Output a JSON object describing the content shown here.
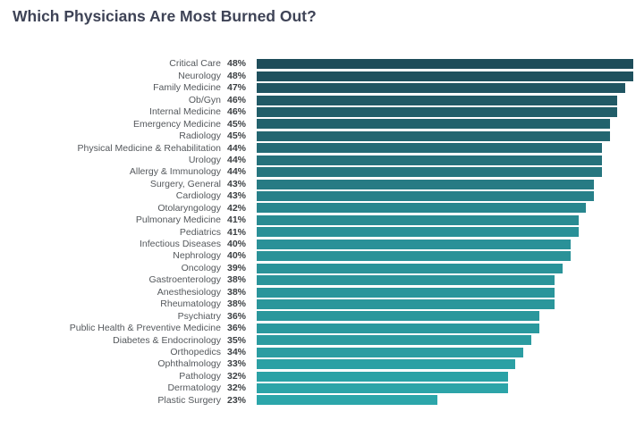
{
  "title": "Which Physicians Are Most Burned Out?",
  "colors": {
    "title": "#3e4356",
    "label": "#54585c",
    "value": "#3c4043",
    "background": "#ffffff",
    "bar_gradient_anchors": [
      {
        "index": 0,
        "color": "#1e4d5a"
      },
      {
        "index": 6,
        "color": "#236671"
      },
      {
        "index": 14,
        "color": "#2a9097"
      },
      {
        "index": 21,
        "color": "#2a979c"
      },
      {
        "index": 28,
        "color": "#2ca6aa"
      }
    ]
  },
  "chart_data": {
    "type": "bar",
    "orientation": "horizontal",
    "title": "Which Physicians Are Most Burned Out?",
    "xlabel": "",
    "ylabel": "",
    "xlim": [
      0,
      48
    ],
    "grid": false,
    "legend": false,
    "value_suffix": "%",
    "categories": [
      "Critical Care",
      "Neurology",
      "Family Medicine",
      "Ob/Gyn",
      "Internal Medicine",
      "Emergency Medicine",
      "Radiology",
      "Physical Medicine & Rehabilitation",
      "Urology",
      "Allergy & Immunology",
      "Surgery, General",
      "Cardiology",
      "Otolaryngology",
      "Pulmonary Medicine",
      "Pediatrics",
      "Infectious Diseases",
      "Nephrology",
      "Oncology",
      "Gastroenterology",
      "Anesthesiology",
      "Rheumatology",
      "Psychiatry",
      "Public Health & Preventive Medicine",
      "Diabetes & Endocrinology",
      "Orthopedics",
      "Ophthalmology",
      "Pathology",
      "Dermatology",
      "Plastic Surgery"
    ],
    "values": [
      48,
      48,
      47,
      46,
      46,
      45,
      45,
      44,
      44,
      44,
      43,
      43,
      42,
      41,
      41,
      40,
      40,
      39,
      38,
      38,
      38,
      36,
      36,
      35,
      34,
      33,
      32,
      32,
      23
    ]
  }
}
